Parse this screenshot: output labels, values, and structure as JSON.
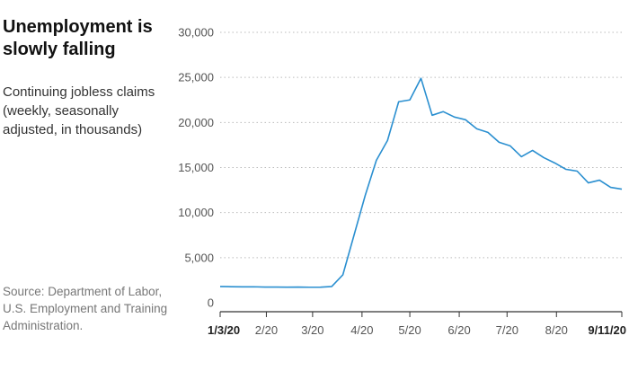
{
  "header": {
    "title": "Unemployment is slowly falling",
    "subtitle": "Continuing jobless claims  (weekly, seasonally adjusted, in thousands)"
  },
  "footer": {
    "source": "Source: Department of Labor, U.S. Employment and Training Administration."
  },
  "colors": {
    "line": "#2a8fd0",
    "grid": "#bbbbbb",
    "axis": "#333333"
  },
  "chart_data": {
    "type": "line",
    "title": "Unemployment is slowly falling",
    "ylim": [
      0,
      30000
    ],
    "xlim": [
      "2020-01-03",
      "2020-09-11"
    ],
    "grid": true,
    "y_ticks": [
      "0",
      "5,000",
      "10,000",
      "15,000",
      "20,000",
      "25,000",
      "30,000"
    ],
    "y_tick_values": [
      0,
      5000,
      10000,
      15000,
      20000,
      25000,
      30000
    ],
    "x_ticks": [
      {
        "label": "1/3/20",
        "date": "2020-01-03",
        "bold": true
      },
      {
        "label": "2/20",
        "date": "2020-02-01",
        "bold": false
      },
      {
        "label": "3/20",
        "date": "2020-03-01",
        "bold": false
      },
      {
        "label": "4/20",
        "date": "2020-04-01",
        "bold": false
      },
      {
        "label": "5/20",
        "date": "2020-05-01",
        "bold": false
      },
      {
        "label": "6/20",
        "date": "2020-06-01",
        "bold": false
      },
      {
        "label": "7/20",
        "date": "2020-07-01",
        "bold": false
      },
      {
        "label": "8/20",
        "date": "2020-08-01",
        "bold": false
      },
      {
        "label": "9/11/20",
        "date": "2020-09-11",
        "bold": true
      }
    ],
    "series": [
      {
        "x": [
          "2020-01-03",
          "2020-01-10",
          "2020-01-17",
          "2020-01-24",
          "2020-01-31",
          "2020-02-07",
          "2020-02-14",
          "2020-02-21",
          "2020-02-28",
          "2020-03-06",
          "2020-03-13",
          "2020-03-20",
          "2020-03-27",
          "2020-04-03",
          "2020-04-10",
          "2020-04-17",
          "2020-04-24",
          "2020-05-01",
          "2020-05-08",
          "2020-05-15",
          "2020-05-22",
          "2020-05-29",
          "2020-06-05",
          "2020-06-12",
          "2020-06-19",
          "2020-06-26",
          "2020-07-03",
          "2020-07-10",
          "2020-07-17",
          "2020-07-24",
          "2020-07-31",
          "2020-08-07",
          "2020-08-14",
          "2020-08-21",
          "2020-08-28",
          "2020-09-04",
          "2020-09-11"
        ],
        "values": [
          1800,
          1780,
          1760,
          1770,
          1740,
          1740,
          1730,
          1740,
          1720,
          1730,
          1800,
          3100,
          7500,
          11900,
          15800,
          18000,
          22300,
          22500,
          24900,
          20800,
          21200,
          20600,
          20300,
          19300,
          18900,
          17800,
          17400,
          16200,
          16900,
          16100,
          15500,
          14800,
          14600,
          13300,
          13600,
          12800,
          12600
        ]
      }
    ]
  }
}
